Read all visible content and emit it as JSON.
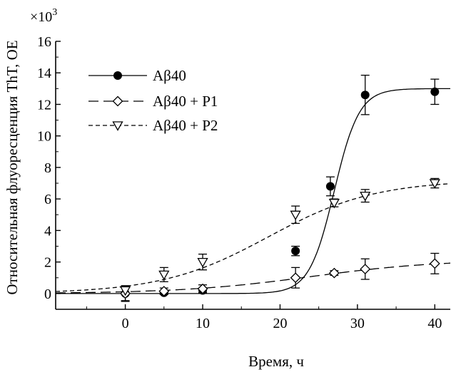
{
  "chart_data": {
    "type": "scatter",
    "xlabel": "Время, ч",
    "ylabel": "Относительная флуоресценция ThT, ОЕ",
    "y_multiplier_label": "×10",
    "y_multiplier_exp": "3",
    "xlim": [
      -9,
      42
    ],
    "ylim": [
      -1,
      16
    ],
    "x_ticks": [
      0,
      10,
      20,
      30,
      40
    ],
    "y_ticks": [
      0,
      2,
      4,
      6,
      8,
      10,
      12,
      14,
      16
    ],
    "grid": false,
    "legend_position": "top-left",
    "series": [
      {
        "name": "Aβ40",
        "marker": "filled-circle",
        "line_style": "solid",
        "x": [
          0,
          5,
          10,
          22,
          26.5,
          31,
          40
        ],
        "y": [
          0,
          0.05,
          0.2,
          2.7,
          6.8,
          12.6,
          12.8
        ],
        "err": [
          0.45,
          0.1,
          0.15,
          0.3,
          0.6,
          1.25,
          0.8
        ],
        "fit": {
          "model": "sigmoid",
          "ymin": 0,
          "ymax": 13,
          "x0": 27,
          "k": 0.62
        }
      },
      {
        "name": "Aβ40 + P1",
        "marker": "open-diamond",
        "line_style": "long-dash",
        "x": [
          0,
          5,
          10,
          22,
          27,
          31,
          40
        ],
        "y": [
          0,
          0.15,
          0.3,
          1.0,
          1.3,
          1.55,
          1.9
        ],
        "err": [
          0.5,
          0.2,
          0.25,
          0.65,
          0.15,
          0.65,
          0.65
        ],
        "fit": {
          "model": "sigmoid",
          "ymin": 0,
          "ymax": 2.15,
          "x0": 24,
          "k": 0.12
        }
      },
      {
        "name": "Aβ40 + P2",
        "marker": "open-triangle-down",
        "line_style": "short-dash",
        "x": [
          0,
          5,
          10,
          22,
          27,
          31,
          40
        ],
        "y": [
          0.2,
          1.2,
          2.0,
          5.0,
          5.75,
          6.2,
          7.0
        ],
        "err": [
          0.25,
          0.45,
          0.5,
          0.55,
          0.25,
          0.4,
          0.3
        ],
        "fit": {
          "model": "sigmoid",
          "ymin": 0,
          "ymax": 7.2,
          "x0": 18.5,
          "k": 0.145
        }
      }
    ]
  }
}
